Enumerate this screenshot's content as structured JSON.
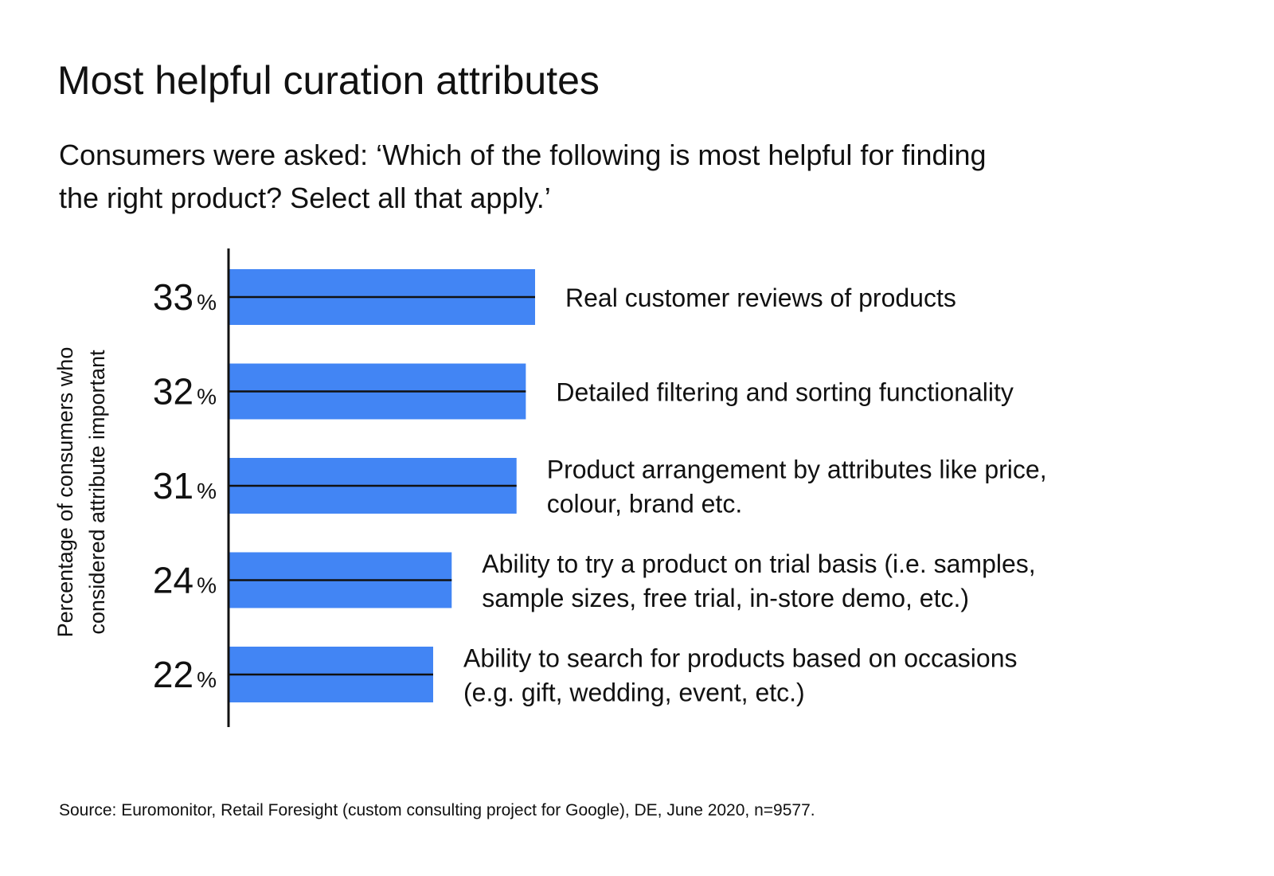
{
  "header": {
    "title": "Most helpful curation attributes",
    "subtitle": "Consumers were asked: ‘Which of the following is most helpful for finding the right product? Select all that apply.’"
  },
  "chart_data": {
    "type": "bar",
    "orientation": "horizontal",
    "ylabel": "Percentage of consumers who considered attribute important",
    "unit": "%",
    "categories": [
      [
        "Real customer reviews of products"
      ],
      [
        "Detailed filtering and sorting functionality"
      ],
      [
        "Product arrangement by attributes like price,",
        "colour, brand etc."
      ],
      [
        "Ability to try a product on trial basis (i.e. samples,",
        "sample sizes, free trial, in-store demo, etc.)"
      ],
      [
        "Ability to search for products based on occasions",
        "(e.g. gift, wedding, event, etc.)"
      ]
    ],
    "values": [
      33,
      32,
      31,
      24,
      22
    ],
    "xlim": [
      0,
      33
    ],
    "grid": false,
    "legend": "none",
    "colors": {
      "bar": "#4285F4",
      "bar_midline": "#111111",
      "axis": "#111111",
      "text": "#111111"
    }
  },
  "footer": {
    "source": "Source: Euromonitor, Retail Foresight (custom consulting project for Google), DE, June 2020, n=9577."
  }
}
